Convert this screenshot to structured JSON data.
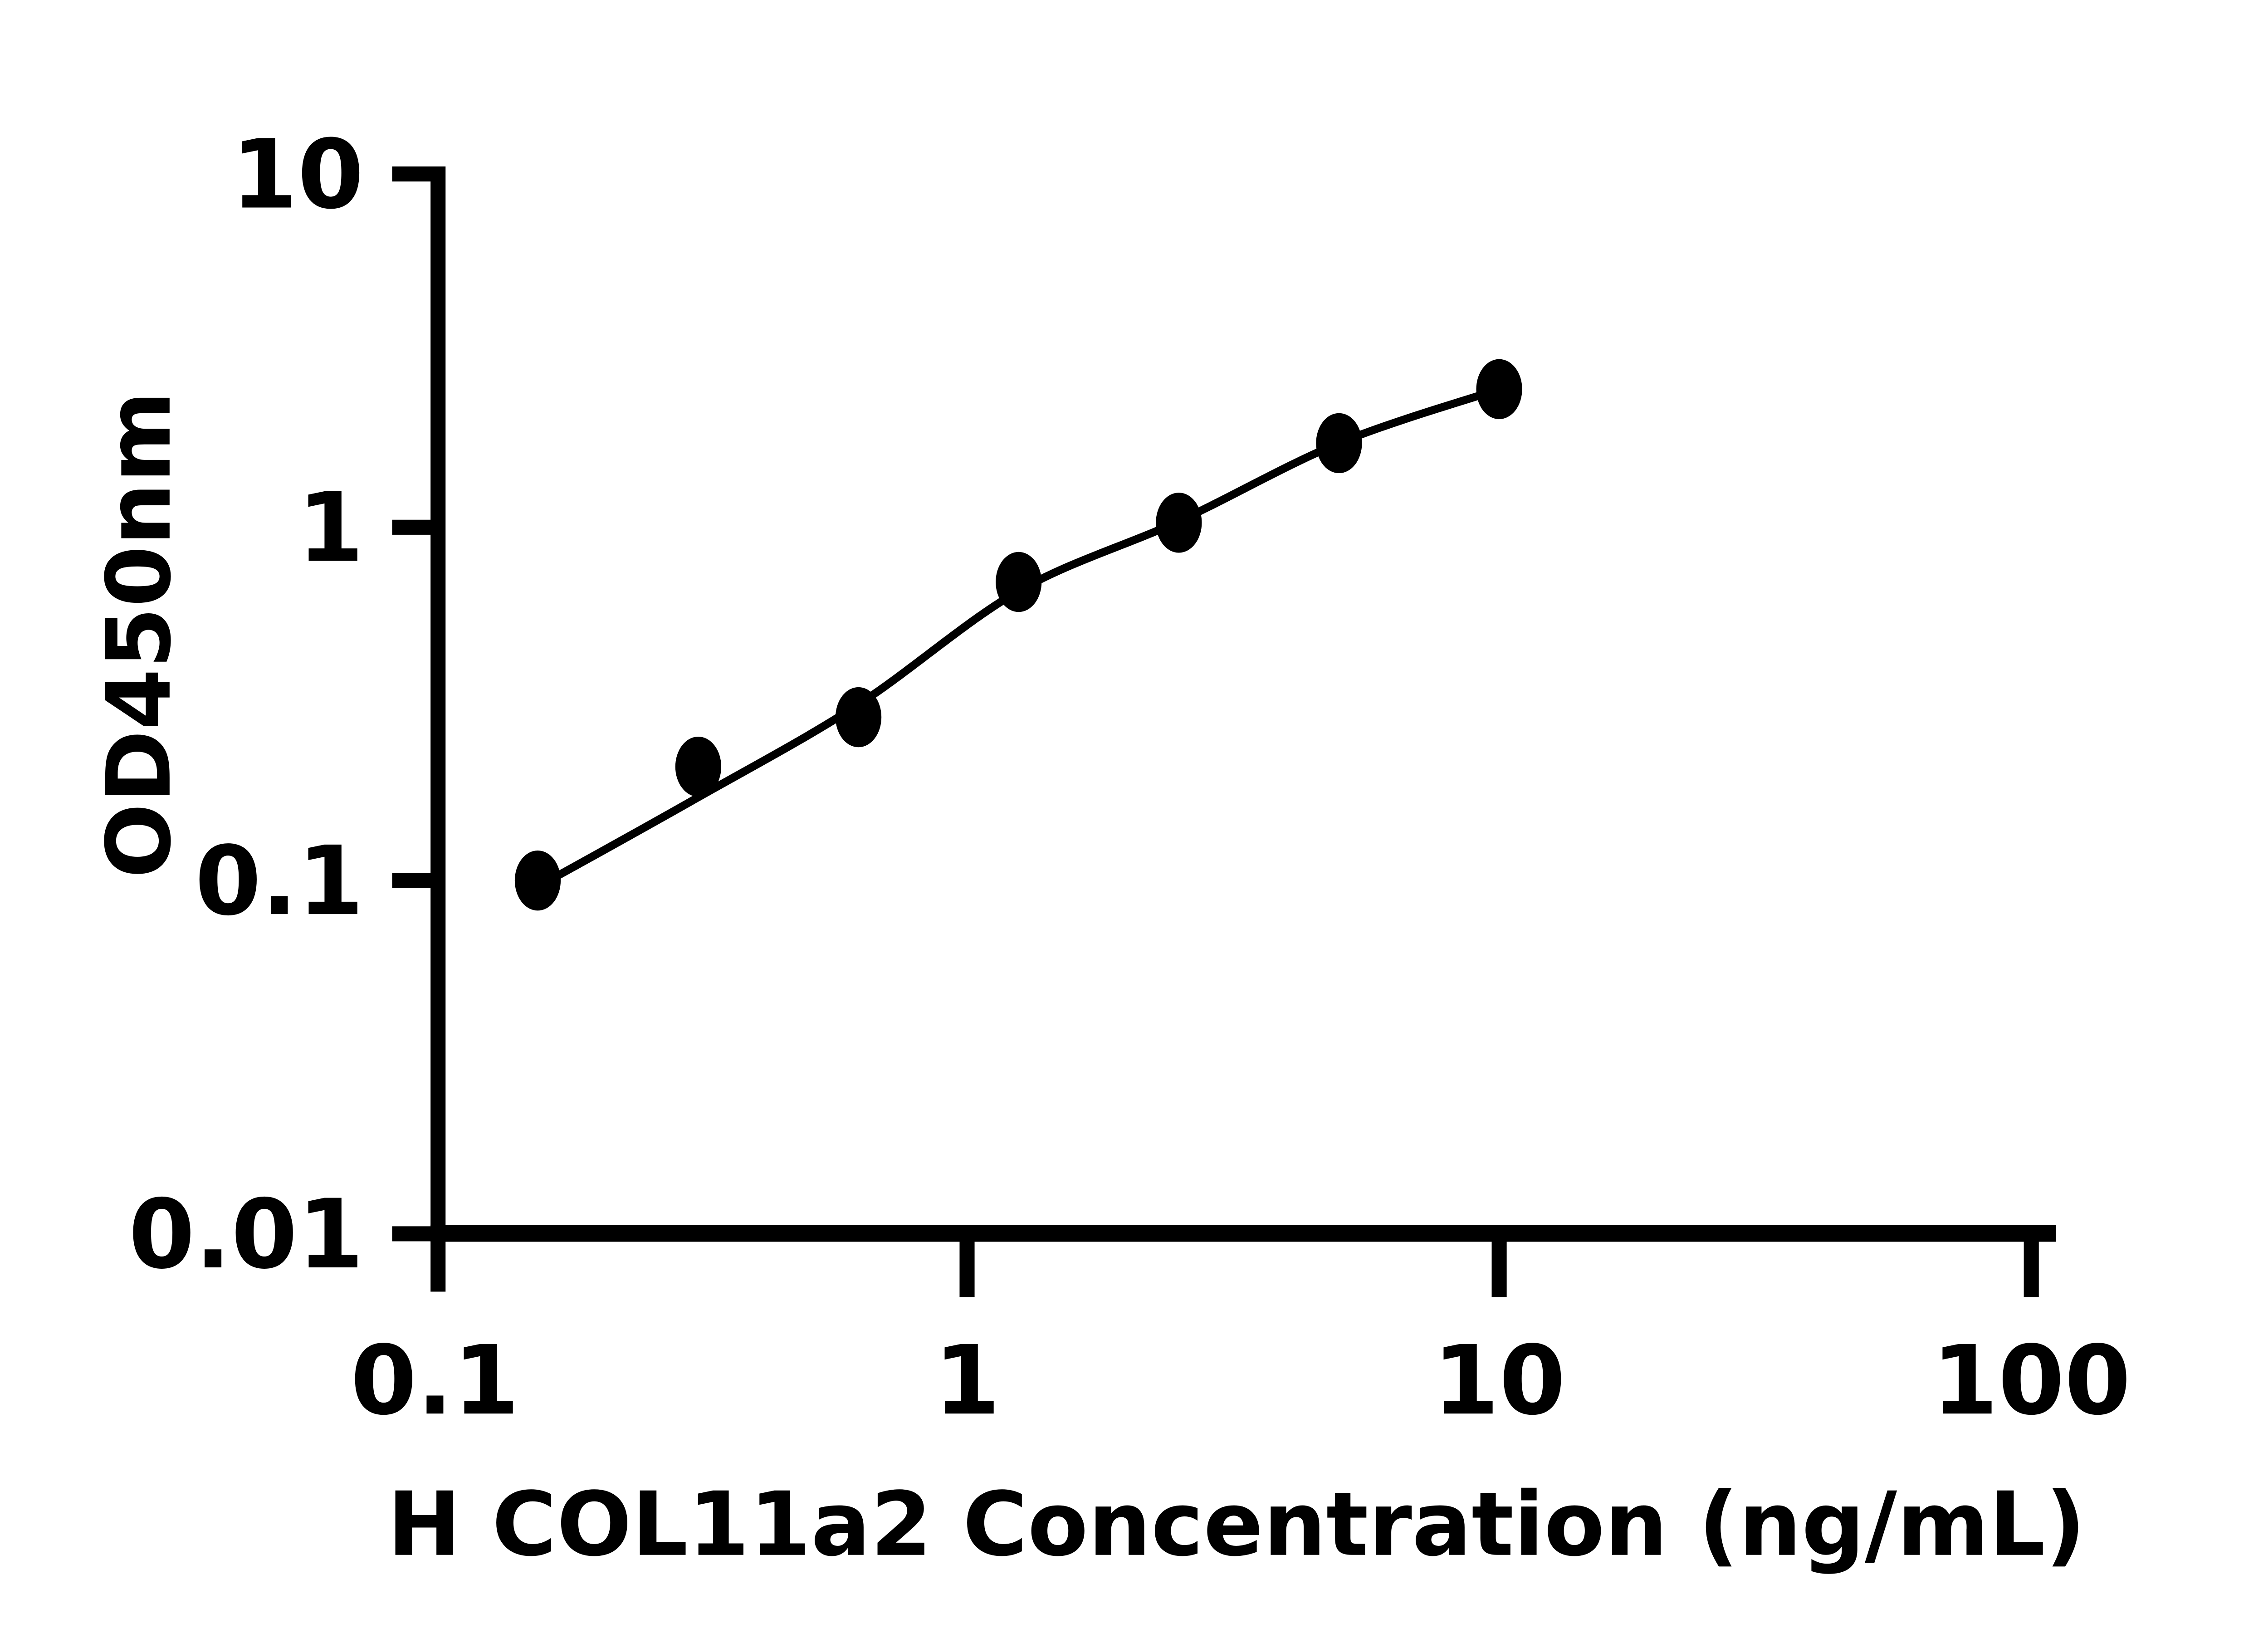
{
  "chart_data": {
    "type": "scatter",
    "title": "",
    "xlabel": "H COL11a2 Concentration (ng/mL)",
    "ylabel": "OD450nm",
    "x_scale": "log",
    "y_scale": "log",
    "xlim": [
      0.1,
      100
    ],
    "ylim": [
      0.01,
      10
    ],
    "x_ticks": [
      1,
      10,
      100
    ],
    "x_tick_labels": [
      "0.1",
      "1",
      "10",
      "100"
    ],
    "x_tick_label_values": [
      0.1,
      1,
      10,
      100
    ],
    "y_ticks": [
      10,
      1,
      0.1,
      0.01
    ],
    "y_tick_labels": [
      "10",
      "1",
      "0.1",
      "0.01"
    ],
    "grid": false,
    "legend": false,
    "axis_color": "#000000",
    "background_color": "#ffffff",
    "series": [
      {
        "name": "standard-curve-points",
        "marker": "filled-ellipse",
        "color": "#000000",
        "x": [
          0.156,
          0.3125,
          0.625,
          1.25,
          2.5,
          5,
          10
        ],
        "y": [
          0.1,
          0.21,
          0.29,
          0.7,
          1.03,
          1.73,
          2.46
        ]
      }
    ],
    "fit_curve": {
      "name": "fitted-trend-line",
      "color": "#000000",
      "x": [
        0.156,
        0.3125,
        0.625,
        1.25,
        2.5,
        5,
        10
      ],
      "y": [
        0.096,
        0.172,
        0.315,
        0.66,
        1.04,
        1.73,
        2.46
      ]
    }
  }
}
